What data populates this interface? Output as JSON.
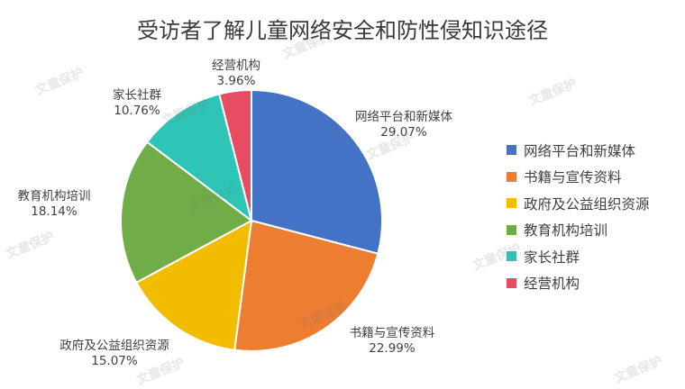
{
  "chart_data": {
    "type": "pie",
    "title": "受访者了解儿童网络安全和防性侵知识途径",
    "slices": [
      {
        "name": "网络平台和新媒体",
        "value": 29.07,
        "label": "29.07%",
        "color": "#4472C4"
      },
      {
        "name": "书籍与宣传资料",
        "value": 22.99,
        "label": "22.99%",
        "color": "#ED7D31"
      },
      {
        "name": "政府及公益组织资源",
        "value": 15.07,
        "label": "15.07%",
        "color": "#F2BC00"
      },
      {
        "name": "教育机构培训",
        "value": 18.14,
        "label": "18.14%",
        "color": "#70AD47"
      },
      {
        "name": "家长社群",
        "value": 10.76,
        "label": "10.76%",
        "color": "#2EC4B6"
      },
      {
        "name": "经营机构",
        "value": 3.96,
        "label": "3.96%",
        "color": "#E84C63"
      }
    ],
    "legend_position": "right"
  },
  "watermark": "文童保护"
}
